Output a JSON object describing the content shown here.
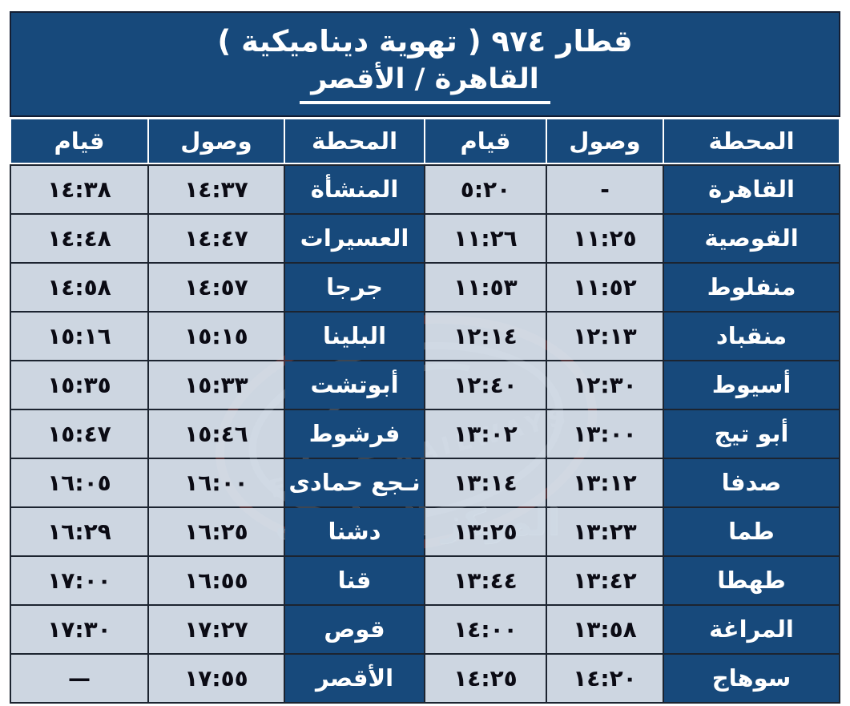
{
  "header": {
    "title_line1": "قطار ٩٧٤   ( تهوية ديناميكية )",
    "title_line2": "القاهرة  /  الأقصر"
  },
  "table": {
    "columns": [
      "المحطة",
      "وصول",
      "قيام",
      "المحطة",
      "وصول",
      "قيام"
    ],
    "rows": [
      [
        "القاهرة",
        "-",
        "٥:٢٠",
        "المنشأة",
        "١٤:٣٧",
        "١٤:٣٨"
      ],
      [
        "القوصية",
        "١١:٢٥",
        "١١:٢٦",
        "العسيرات",
        "١٤:٤٧",
        "١٤:٤٨"
      ],
      [
        "منفلوط",
        "١١:٥٢",
        "١١:٥٣",
        "جرجا",
        "١٤:٥٧",
        "١٤:٥٨"
      ],
      [
        "منقباد",
        "١٢:١٣",
        "١٢:١٤",
        "البلينا",
        "١٥:١٥",
        "١٥:١٦"
      ],
      [
        "أسيوط",
        "١٢:٣٠",
        "١٢:٤٠",
        "أبوتشت",
        "١٥:٣٣",
        "١٥:٣٥"
      ],
      [
        "أبو تيج",
        "١٣:٠٠",
        "١٣:٠٢",
        "فرشوط",
        "١٥:٤٦",
        "١٥:٤٧"
      ],
      [
        "صدفا",
        "١٣:١٢",
        "١٣:١٤",
        "نـجع حمادى",
        "١٦:٠٠",
        "١٦:٠٥"
      ],
      [
        "طما",
        "١٣:٢٣",
        "١٣:٢٥",
        "دشنا",
        "١٦:٢٥",
        "١٦:٢٩"
      ],
      [
        "طهطا",
        "١٣:٤٢",
        "١٣:٤٤",
        "قنا",
        "١٦:٥٥",
        "١٧:٠٠"
      ],
      [
        "المراغة",
        "١٣:٥٨",
        "١٤:٠٠",
        "قوص",
        "١٧:٢٧",
        "١٧:٣٠"
      ],
      [
        "سوهاج",
        "١٤:٢٠",
        "١٤:٢٥",
        "الأقصر",
        "١٧:٥٥",
        "—"
      ]
    ]
  },
  "watermark": {
    "text_en": "EGYPT RAILWAYS",
    "text_ar": "المركز الإعلامي"
  },
  "colors": {
    "navy": "#17497b",
    "light_cell": "#dce6f1",
    "grid_line": "#1c2430",
    "watermark_red": "#c4544b",
    "watermark_gray": "#8d949e"
  }
}
